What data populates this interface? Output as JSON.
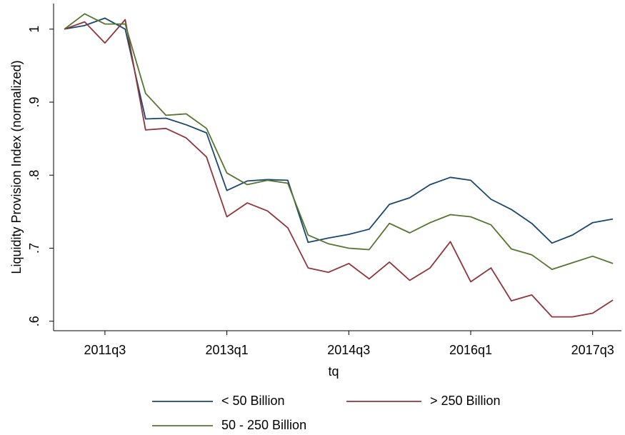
{
  "chart_data": {
    "type": "line",
    "y_label": "Liquidity Provision Index (normalized)",
    "x_label": "tq",
    "categories": [
      null,
      null,
      "2011q3",
      null,
      null,
      null,
      null,
      null,
      "2013q1",
      null,
      null,
      null,
      null,
      null,
      "2014q3",
      null,
      null,
      null,
      null,
      null,
      "2016q1",
      null,
      null,
      null,
      null,
      null,
      "2017q3",
      null
    ],
    "ylim": [
      0.587,
      1.035
    ],
    "yticks": [
      {
        "value": 0.6,
        "label": ".6"
      },
      {
        "value": 0.7,
        "label": ".7"
      },
      {
        "value": 0.8,
        "label": ".8"
      },
      {
        "value": 0.9,
        "label": ".9"
      },
      {
        "value": 1,
        "label": "1"
      }
    ],
    "grid": false,
    "legend": "bottom",
    "series": [
      {
        "name": "< 50 Billion",
        "color": "#1a476f",
        "values": [
          1.0,
          1.005,
          1.015,
          1.0,
          0.877,
          0.878,
          0.869,
          0.858,
          0.779,
          0.792,
          0.794,
          0.793,
          0.708,
          0.714,
          0.719,
          0.726,
          0.76,
          0.769,
          0.787,
          0.797,
          0.793,
          0.767,
          0.753,
          0.734,
          0.707,
          0.718,
          0.735,
          0.74
        ]
      },
      {
        "name": "> 250 Billion",
        "color": "#90353b",
        "values": [
          1.0,
          1.01,
          0.981,
          1.013,
          0.862,
          0.864,
          0.851,
          0.825,
          0.743,
          0.762,
          0.751,
          0.728,
          0.673,
          0.667,
          0.679,
          0.658,
          0.681,
          0.656,
          0.673,
          0.709,
          0.654,
          0.673,
          0.628,
          0.636,
          0.606,
          0.606,
          0.611,
          0.629
        ]
      },
      {
        "name": "50 - 250 Billion",
        "color": "#55752f",
        "values": [
          1.0,
          1.021,
          1.007,
          1.007,
          0.912,
          0.882,
          0.884,
          0.864,
          0.803,
          0.787,
          0.793,
          0.789,
          0.718,
          0.706,
          0.7,
          0.698,
          0.734,
          0.721,
          0.735,
          0.746,
          0.743,
          0.732,
          0.699,
          0.691,
          0.671,
          0.68,
          0.689,
          0.679
        ]
      }
    ]
  }
}
